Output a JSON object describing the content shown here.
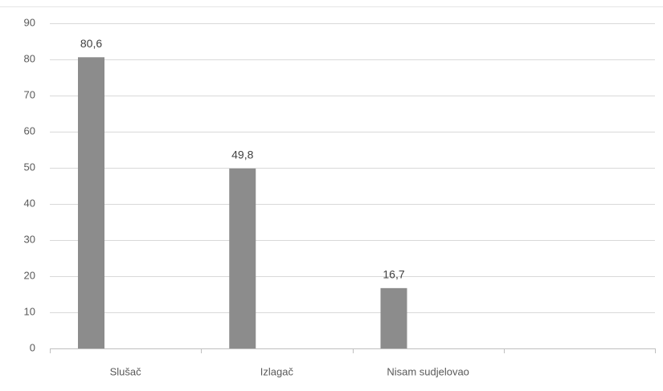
{
  "chart_data": {
    "type": "bar",
    "categories": [
      "Slušač",
      "Izlagač",
      "Nisam sudjelovao",
      null
    ],
    "values": [
      80.6,
      49.8,
      16.7,
      null
    ],
    "value_labels": [
      "80,6",
      "49,8",
      "16,7",
      null
    ],
    "color": "#8c8c8c",
    "ylim": [
      0,
      90
    ],
    "yticks": [
      0,
      10,
      20,
      30,
      40,
      50,
      60,
      70,
      80,
      90
    ],
    "grid": true
  }
}
